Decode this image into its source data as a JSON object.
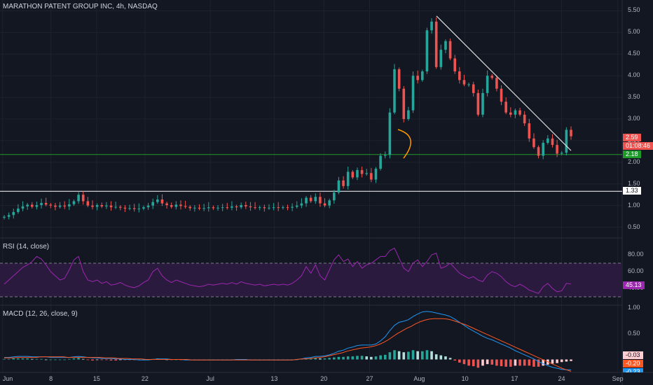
{
  "title": "MARATHON PATENT GROUP INC, 4h, NASDAQ",
  "rsi_title": "RSI (14, close)",
  "macd_title": "MACD (12, 26, close, 9)",
  "price_ticks": [
    "5.50",
    "5.00",
    "4.50",
    "4.00",
    "3.50",
    "3.00",
    "2.50",
    "2.00",
    "1.50",
    "1.00",
    "0.50"
  ],
  "rsi_ticks": [
    "80.00",
    "60.00",
    "40.00"
  ],
  "macd_ticks": [
    "1.00",
    "0.50"
  ],
  "x_ticks": [
    "Jun",
    "8",
    "15",
    "22",
    "Jul",
    "13",
    "20",
    "27",
    "Aug",
    "10",
    "17",
    "24",
    "Sep"
  ],
  "tags": {
    "last_price": "2.59",
    "countdown": "01:08:46",
    "support": "2.18",
    "level": "1.33",
    "rsi": "45.13",
    "macd_hist": "-0.03",
    "macd_line": "-0.20",
    "signal": "-0.23"
  },
  "colors": {
    "background": "#131722",
    "up": "#26a69a",
    "down": "#ef5350",
    "support_line": "#1e9a2b",
    "level_line": "#ffffff",
    "rsi_line": "#9c27b0",
    "rsi_band": "#2a1a3d",
    "macd_line": "#2196f3",
    "signal_line": "#ff5722",
    "trendline": "#ffffff",
    "arc": "#ff9800"
  },
  "chart_data": {
    "type": "candlestick",
    "interval": "4h",
    "price_range": [
      0.25,
      5.75
    ],
    "support_level": 2.18,
    "horizontal_level": 1.33,
    "trendline": {
      "from": {
        "date": "Aug 9",
        "price": 5.38
      },
      "to": {
        "date": "Aug 30",
        "price": 2.27
      }
    },
    "price_series": [
      [
        0.72,
        0.74
      ],
      [
        0.74,
        0.78
      ],
      [
        0.78,
        0.85
      ],
      [
        0.85,
        0.93
      ],
      [
        0.93,
        0.98
      ],
      [
        0.98,
        1.02
      ],
      [
        1.02,
        0.97
      ],
      [
        0.97,
        1.01
      ],
      [
        1.01,
        1.06
      ],
      [
        1.06,
        1.02
      ],
      [
        1.02,
        1.0
      ],
      [
        1.0,
        0.97
      ],
      [
        0.97,
        1.0
      ],
      [
        1.0,
        0.98
      ],
      [
        0.98,
        1.03
      ],
      [
        1.03,
        1.1
      ],
      [
        1.1,
        1.25
      ],
      [
        1.25,
        1.1
      ],
      [
        1.1,
        1.0
      ],
      [
        1.0,
        0.97
      ],
      [
        0.97,
        1.01
      ],
      [
        1.01,
        0.98
      ],
      [
        0.98,
        1.0
      ],
      [
        1.0,
        0.96
      ],
      [
        0.96,
        0.97
      ],
      [
        0.97,
        0.95
      ],
      [
        0.95,
        0.93
      ],
      [
        0.93,
        0.94
      ],
      [
        0.94,
        0.92
      ],
      [
        0.92,
        0.93
      ],
      [
        0.93,
        0.96
      ],
      [
        0.96,
        1.0
      ],
      [
        1.0,
        1.08
      ],
      [
        1.08,
        1.14
      ],
      [
        1.14,
        1.05
      ],
      [
        1.05,
        1.01
      ],
      [
        1.01,
        0.97
      ],
      [
        0.97,
        1.02
      ],
      [
        1.02,
        0.99
      ],
      [
        0.99,
        0.97
      ],
      [
        0.97,
        0.94
      ],
      [
        0.94,
        0.95
      ],
      [
        0.95,
        0.93
      ],
      [
        0.93,
        0.94
      ],
      [
        0.94,
        0.96
      ],
      [
        0.96,
        0.94
      ],
      [
        0.94,
        0.95
      ],
      [
        0.95,
        0.96
      ],
      [
        0.96,
        0.95
      ],
      [
        0.95,
        0.98
      ],
      [
        0.98,
        0.96
      ],
      [
        0.96,
        1.01
      ],
      [
        1.01,
        0.98
      ],
      [
        0.98,
        0.96
      ],
      [
        0.96,
        0.95
      ],
      [
        0.95,
        0.96
      ],
      [
        0.96,
        0.94
      ],
      [
        0.94,
        0.95
      ],
      [
        0.95,
        0.96
      ],
      [
        0.96,
        0.95
      ],
      [
        0.95,
        0.96
      ],
      [
        0.96,
        0.95
      ],
      [
        0.95,
        0.97
      ],
      [
        0.97,
        1.0
      ],
      [
        1.0,
        1.05
      ],
      [
        1.05,
        1.18
      ],
      [
        1.18,
        1.1
      ],
      [
        1.1,
        1.2
      ],
      [
        1.2,
        1.05
      ],
      [
        1.05,
        1.0
      ],
      [
        1.0,
        1.12
      ],
      [
        1.12,
        1.3
      ],
      [
        1.3,
        1.58
      ],
      [
        1.58,
        1.45
      ],
      [
        1.45,
        1.78
      ],
      [
        1.78,
        1.65
      ],
      [
        1.65,
        1.82
      ],
      [
        1.82,
        1.73
      ],
      [
        1.73,
        1.75
      ],
      [
        1.75,
        1.6
      ],
      [
        1.6,
        1.85
      ],
      [
        1.85,
        2.15
      ],
      [
        2.15,
        2.17
      ],
      [
        2.17,
        3.15
      ],
      [
        3.15,
        4.15
      ],
      [
        4.15,
        3.7
      ],
      [
        3.7,
        3.0
      ],
      [
        3.0,
        3.2
      ],
      [
        3.2,
        4.0
      ],
      [
        4.0,
        3.9
      ],
      [
        3.9,
        4.1
      ],
      [
        4.1,
        5.05
      ],
      [
        5.05,
        5.25
      ],
      [
        5.25,
        4.2
      ],
      [
        4.2,
        4.6
      ],
      [
        4.6,
        4.8
      ],
      [
        4.8,
        4.4
      ],
      [
        4.4,
        4.1
      ],
      [
        4.1,
        3.9
      ],
      [
        3.9,
        3.8
      ],
      [
        3.8,
        3.8
      ],
      [
        3.8,
        3.6
      ],
      [
        3.6,
        3.1
      ],
      [
        3.1,
        3.6
      ],
      [
        3.6,
        4.0
      ],
      [
        4.0,
        3.95
      ],
      [
        3.95,
        3.7
      ],
      [
        3.7,
        3.4
      ],
      [
        3.4,
        3.15
      ],
      [
        3.15,
        3.1
      ],
      [
        3.1,
        3.2
      ],
      [
        3.2,
        3.1
      ],
      [
        3.1,
        2.9
      ],
      [
        2.9,
        2.55
      ],
      [
        2.55,
        2.35
      ],
      [
        2.35,
        2.15
      ],
      [
        2.15,
        2.45
      ],
      [
        2.45,
        2.55
      ],
      [
        2.55,
        2.4
      ],
      [
        2.4,
        2.2
      ],
      [
        2.2,
        2.22
      ],
      [
        2.22,
        2.75
      ],
      [
        2.75,
        2.6
      ]
    ],
    "rsi": {
      "range": [
        20,
        100
      ],
      "band": [
        30,
        70
      ],
      "values": [
        45,
        50,
        55,
        60,
        65,
        68,
        72,
        78,
        75,
        68,
        60,
        55,
        50,
        52,
        62,
        74,
        78,
        60,
        50,
        48,
        50,
        46,
        48,
        44,
        45,
        47,
        44,
        42,
        41,
        43,
        47,
        50,
        60,
        64,
        55,
        50,
        47,
        50,
        48,
        46,
        44,
        43,
        42,
        43,
        45,
        44,
        45,
        46,
        45,
        47,
        45,
        48,
        46,
        45,
        44,
        45,
        43,
        44,
        45,
        44,
        45,
        44,
        46,
        50,
        55,
        66,
        58,
        68,
        55,
        50,
        62,
        74,
        80,
        72,
        75,
        66,
        72,
        64,
        68,
        70,
        74,
        78,
        78,
        85,
        88,
        76,
        64,
        60,
        70,
        74,
        66,
        72,
        80,
        82,
        64,
        66,
        70,
        64,
        58,
        55,
        52,
        54,
        50,
        48,
        56,
        60,
        58,
        54,
        48,
        44,
        42,
        45,
        42,
        38,
        36,
        34,
        42,
        46,
        40,
        36,
        37,
        46,
        45.13
      ]
    },
    "macd": {
      "range": [
        -0.25,
        1.05
      ],
      "hist_values": [
        0.01,
        0.01,
        0.02,
        0.02,
        0.02,
        0.02,
        0.01,
        0.01,
        0.01,
        0.0,
        0.0,
        0.0,
        0.0,
        0.0,
        0.01,
        0.02,
        0.03,
        0.01,
        -0.01,
        -0.02,
        -0.01,
        -0.01,
        -0.01,
        -0.02,
        -0.02,
        -0.01,
        -0.01,
        -0.01,
        -0.01,
        -0.01,
        0.0,
        0.0,
        0.01,
        0.02,
        0.01,
        0.0,
        -0.01,
        0.0,
        -0.01,
        -0.01,
        -0.01,
        -0.01,
        -0.01,
        -0.01,
        0.0,
        0.0,
        0.0,
        0.0,
        0.0,
        0.0,
        0.0,
        0.0,
        0.0,
        -0.01,
        -0.01,
        0.0,
        0.0,
        0.0,
        0.0,
        0.0,
        0.0,
        0.0,
        0.0,
        0.0,
        0.01,
        0.02,
        0.02,
        0.03,
        0.02,
        0.02,
        0.03,
        0.04,
        0.05,
        0.05,
        0.06,
        0.06,
        0.07,
        0.07,
        0.06,
        0.05,
        0.06,
        0.08,
        0.09,
        0.14,
        0.18,
        0.16,
        0.14,
        0.15,
        0.18,
        0.16,
        0.16,
        0.18,
        0.16,
        0.1,
        0.08,
        0.06,
        0.03,
        -0.02,
        -0.06,
        -0.09,
        -0.12,
        -0.13,
        -0.16,
        -0.12,
        -0.09,
        -0.1,
        -0.12,
        -0.13,
        -0.14,
        -0.14,
        -0.12,
        -0.12,
        -0.12,
        -0.12,
        -0.14,
        -0.14,
        -0.12,
        -0.1,
        -0.08,
        -0.07,
        -0.05,
        -0.04,
        -0.03
      ],
      "macd_values": [
        0.04,
        0.04,
        0.05,
        0.06,
        0.06,
        0.06,
        0.05,
        0.05,
        0.05,
        0.05,
        0.04,
        0.04,
        0.04,
        0.04,
        0.04,
        0.05,
        0.06,
        0.05,
        0.04,
        0.03,
        0.03,
        0.02,
        0.02,
        0.02,
        0.01,
        0.01,
        0.0,
        0.0,
        0.0,
        -0.01,
        -0.01,
        -0.01,
        0.0,
        0.01,
        0.01,
        0.01,
        0.0,
        0.0,
        0.0,
        -0.01,
        -0.01,
        -0.01,
        -0.01,
        -0.01,
        -0.01,
        -0.01,
        -0.01,
        -0.01,
        -0.01,
        -0.01,
        0.0,
        0.0,
        0.0,
        -0.01,
        -0.01,
        -0.01,
        -0.01,
        -0.01,
        -0.01,
        -0.01,
        -0.01,
        -0.01,
        -0.01,
        0.0,
        0.01,
        0.03,
        0.04,
        0.06,
        0.06,
        0.07,
        0.09,
        0.12,
        0.16,
        0.18,
        0.22,
        0.24,
        0.27,
        0.28,
        0.28,
        0.28,
        0.3,
        0.36,
        0.44,
        0.56,
        0.66,
        0.72,
        0.74,
        0.77,
        0.83,
        0.88,
        0.92,
        0.93,
        0.92,
        0.9,
        0.88,
        0.86,
        0.83,
        0.78,
        0.72,
        0.66,
        0.6,
        0.55,
        0.5,
        0.45,
        0.41,
        0.38,
        0.34,
        0.3,
        0.26,
        0.22,
        0.17,
        0.13,
        0.09,
        0.05,
        0.01,
        -0.04,
        -0.08,
        -0.12,
        -0.15,
        -0.17,
        -0.19,
        -0.2,
        -0.2
      ],
      "signal_values": [
        0.03,
        0.03,
        0.03,
        0.04,
        0.04,
        0.04,
        0.04,
        0.04,
        0.05,
        0.05,
        0.05,
        0.05,
        0.05,
        0.05,
        0.04,
        0.04,
        0.04,
        0.04,
        0.04,
        0.04,
        0.04,
        0.04,
        0.03,
        0.03,
        0.03,
        0.02,
        0.02,
        0.02,
        0.01,
        0.01,
        0.01,
        0.0,
        0.0,
        0.0,
        0.0,
        0.0,
        0.0,
        0.0,
        0.0,
        0.0,
        0.0,
        -0.01,
        -0.01,
        -0.01,
        -0.01,
        -0.01,
        -0.01,
        -0.01,
        -0.01,
        -0.01,
        -0.01,
        -0.01,
        -0.01,
        -0.01,
        -0.01,
        -0.01,
        -0.01,
        -0.01,
        -0.01,
        -0.01,
        -0.01,
        -0.01,
        -0.01,
        -0.01,
        0.0,
        0.01,
        0.01,
        0.02,
        0.03,
        0.04,
        0.05,
        0.07,
        0.09,
        0.11,
        0.13,
        0.16,
        0.18,
        0.2,
        0.22,
        0.23,
        0.24,
        0.26,
        0.29,
        0.33,
        0.38,
        0.44,
        0.5,
        0.55,
        0.6,
        0.64,
        0.69,
        0.73,
        0.76,
        0.78,
        0.79,
        0.79,
        0.79,
        0.78,
        0.76,
        0.73,
        0.7,
        0.67,
        0.63,
        0.59,
        0.55,
        0.51,
        0.47,
        0.43,
        0.39,
        0.35,
        0.31,
        0.27,
        0.23,
        0.19,
        0.15,
        0.11,
        0.07,
        0.03,
        -0.01,
        -0.05,
        -0.09,
        -0.13,
        -0.17,
        -0.2,
        -0.23
      ]
    }
  }
}
